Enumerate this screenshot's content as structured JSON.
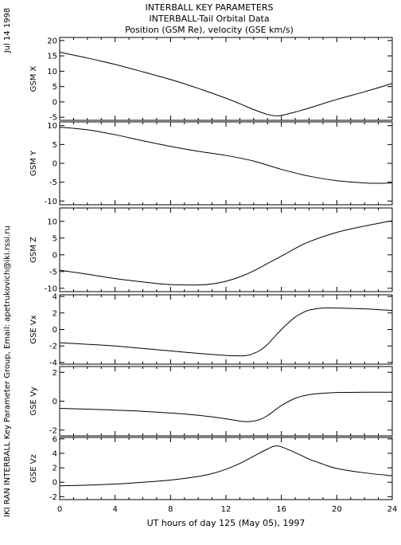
{
  "side_date": "Jul 14 1998",
  "side_credit": "IKI RAN INTERBALL Key Parameter Group, Email: apetrukovich@iki.rssi.ru",
  "chart_data": {
    "type": "line",
    "title_lines": [
      "INTERBALL KEY PARAMETERS",
      "INTERBALL-Tail Orbital Data",
      "Position (GSM Re), velocity (GSE km/s)"
    ],
    "xlabel": "UT hours of day 125 (May 05), 1997",
    "xlim": [
      0,
      24
    ],
    "xticks": [
      "0",
      "4",
      "8",
      "12",
      "16",
      "20",
      "24"
    ],
    "colors": {
      "line": "#000000",
      "axis": "#000000"
    },
    "panels": [
      {
        "ylabel": "GSM X",
        "ylim": [
          -6,
          21
        ],
        "yticks": [
          "-5",
          "0",
          "5",
          "10",
          "15",
          "20"
        ],
        "series": [
          {
            "x": [
              0,
              2,
              4,
              6,
              8,
              10,
              12,
              13,
              14,
              15,
              15.5,
              16,
              17,
              18,
              20,
              22,
              24
            ],
            "y": [
              16.2,
              14.3,
              12.2,
              9.8,
              7.3,
              4.4,
              1.2,
              -0.6,
              -2.5,
              -4.1,
              -4.5,
              -4.4,
              -3.3,
              -2,
              0.8,
              3.3,
              6
            ]
          }
        ]
      },
      {
        "ylabel": "GSM Y",
        "ylim": [
          -11,
          11
        ],
        "yticks": [
          "-10",
          "-5",
          "0",
          "5",
          "10"
        ],
        "series": [
          {
            "x": [
              0,
              2,
              4,
              6,
              8,
              10,
              12,
              14,
              16,
              18,
              20,
              22,
              23,
              24
            ],
            "y": [
              9.6,
              8.9,
              7.6,
              6,
              4.5,
              3.2,
              2.1,
              0.6,
              -1.6,
              -3.4,
              -4.6,
              -5.2,
              -5.3,
              -5.2
            ]
          }
        ]
      },
      {
        "ylabel": "GSM Z",
        "ylim": [
          -11,
          14
        ],
        "yticks": [
          "-10",
          "-5",
          "0",
          "5",
          "10"
        ],
        "series": [
          {
            "x": [
              0,
              2,
              4,
              6,
              8,
              10,
              11,
              12,
              13,
              14,
              15,
              16,
              17,
              18,
              20,
              22,
              24
            ],
            "y": [
              -4.6,
              -5.8,
              -7.1,
              -8.1,
              -8.9,
              -9.0,
              -8.7,
              -7.9,
              -6.6,
              -4.8,
              -2.6,
              -0.4,
              1.9,
              3.9,
              6.7,
              8.6,
              10.2
            ]
          }
        ]
      },
      {
        "ylabel": "GSE Vx",
        "ylim": [
          -4.2,
          4.2
        ],
        "yticks": [
          "-4",
          "-2",
          "0",
          "2",
          "4"
        ],
        "series": [
          {
            "x": [
              0,
              2,
              4,
              6,
              8,
              10,
              12,
              13,
              13.5,
              14,
              14.5,
              15,
              15.5,
              16,
              16.5,
              17,
              17.5,
              18,
              19,
              20,
              22,
              24
            ],
            "y": [
              -1.6,
              -1.8,
              -2.0,
              -2.3,
              -2.6,
              -2.9,
              -3.15,
              -3.2,
              -3.15,
              -2.9,
              -2.5,
              -1.8,
              -0.9,
              0.0,
              0.8,
              1.5,
              2.0,
              2.35,
              2.6,
              2.6,
              2.5,
              2.3
            ]
          }
        ]
      },
      {
        "ylabel": "GSE Vy",
        "ylim": [
          -2.4,
          2.4
        ],
        "yticks": [
          "-2",
          "0",
          "2"
        ],
        "series": [
          {
            "x": [
              0,
              2,
              4,
              6,
              8,
              10,
              12,
              13,
              13.5,
              14,
              14.5,
              15,
              15.5,
              16,
              17,
              18,
              19,
              20,
              22,
              24
            ],
            "y": [
              -0.5,
              -0.55,
              -0.62,
              -0.7,
              -0.82,
              -0.98,
              -1.22,
              -1.38,
              -1.42,
              -1.38,
              -1.25,
              -1.0,
              -0.65,
              -0.3,
              0.2,
              0.45,
              0.55,
              0.6,
              0.62,
              0.62
            ]
          }
        ]
      },
      {
        "ylabel": "GSE Vz",
        "ylim": [
          -2.4,
          6.2
        ],
        "yticks": [
          "-2",
          "0",
          "2",
          "4",
          "6"
        ],
        "series": [
          {
            "x": [
              0,
              2,
              4,
              6,
              8,
              10,
              11,
              12,
              13,
              14,
              15,
              15.5,
              16,
              17,
              18,
              19,
              20,
              22,
              24
            ],
            "y": [
              -0.5,
              -0.4,
              -0.25,
              0.0,
              0.3,
              0.8,
              1.2,
              1.8,
              2.6,
              3.6,
              4.6,
              5.0,
              4.9,
              4.1,
              3.2,
              2.5,
              1.9,
              1.3,
              0.9
            ]
          }
        ]
      }
    ]
  }
}
